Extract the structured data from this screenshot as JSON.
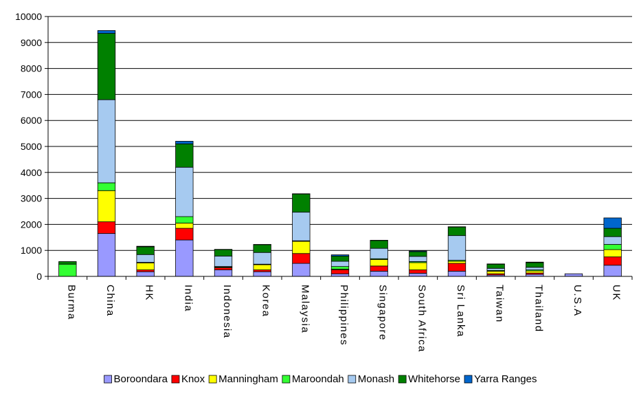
{
  "chart_data": {
    "type": "bar",
    "stacked": true,
    "title": "",
    "xlabel": "",
    "ylabel": "",
    "ylim": [
      0,
      10000
    ],
    "yticks": [
      0,
      1000,
      2000,
      3000,
      4000,
      5000,
      6000,
      7000,
      8000,
      9000,
      10000
    ],
    "grid": "horizontal",
    "legend_position": "bottom",
    "categories": [
      "Burma",
      "China",
      "HK",
      "India",
      "Indonesia",
      "Korea",
      "Malaysia",
      "Philippines",
      "Singapore",
      "South Africa",
      "Sri Lanka",
      "Taiwan",
      "Thailand",
      "U.S.A",
      "UK"
    ],
    "series": [
      {
        "name": "Boroondara",
        "color": "#9999ff",
        "values": [
          0,
          1650,
          180,
          1400,
          250,
          180,
          500,
          100,
          200,
          120,
          200,
          50,
          80,
          100,
          430
        ]
      },
      {
        "name": "Knox",
        "color": "#ff0000",
        "values": [
          0,
          450,
          70,
          450,
          80,
          70,
          380,
          150,
          200,
          130,
          300,
          50,
          50,
          0,
          320
        ]
      },
      {
        "name": "Manningham",
        "color": "#ffff00",
        "values": [
          0,
          1200,
          270,
          200,
          30,
          200,
          470,
          30,
          250,
          280,
          80,
          100,
          80,
          0,
          280
        ]
      },
      {
        "name": "Maroondah",
        "color": "#33ff33",
        "values": [
          470,
          300,
          20,
          250,
          20,
          20,
          20,
          100,
          30,
          40,
          40,
          30,
          40,
          0,
          200
        ]
      },
      {
        "name": "Monash",
        "color": "#a6caf0",
        "values": [
          0,
          3200,
          300,
          1900,
          400,
          450,
          1100,
          200,
          400,
          200,
          950,
          80,
          100,
          0,
          300
        ]
      },
      {
        "name": "Whitehorse",
        "color": "#008000",
        "values": [
          100,
          2550,
          300,
          900,
          250,
          300,
          700,
          200,
          300,
          180,
          330,
          160,
          180,
          0,
          320
        ]
      },
      {
        "name": "Yarra Ranges",
        "color": "#0066cc",
        "values": [
          0,
          110,
          20,
          100,
          10,
          10,
          10,
          50,
          10,
          30,
          10,
          10,
          20,
          0,
          400
        ]
      }
    ]
  }
}
